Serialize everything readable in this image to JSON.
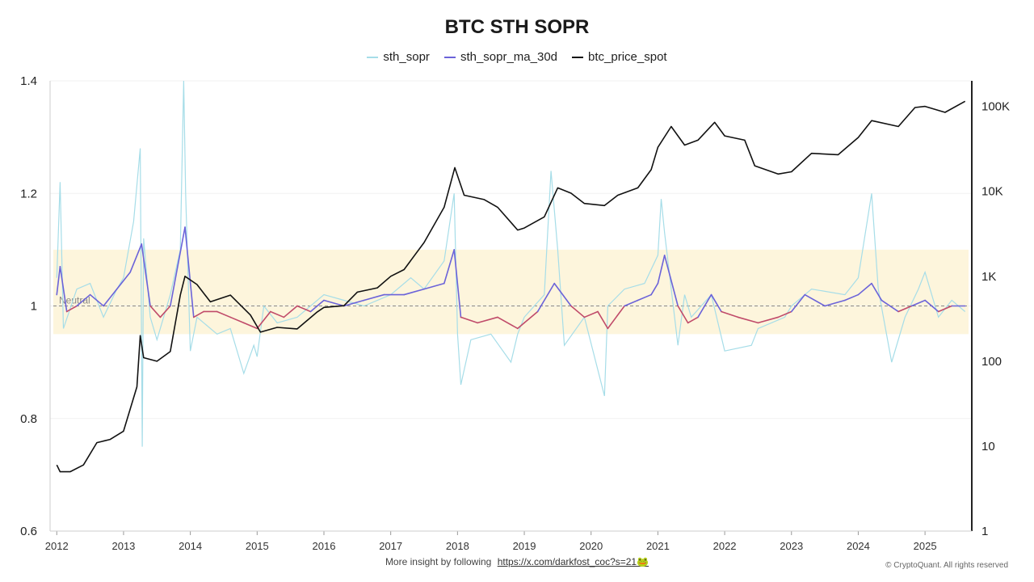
{
  "chart_data": {
    "type": "line",
    "title": "BTC STH SOPR",
    "left_axis": {
      "ylim": [
        0.6,
        1.4
      ],
      "ticks": [
        "0.6",
        "0.8",
        "1",
        "1.2",
        "1.4"
      ]
    },
    "right_axis": {
      "scale": "log",
      "ylim": [
        1,
        200000
      ],
      "ticks": [
        "1",
        "10",
        "100",
        "1K",
        "10K",
        "100K"
      ]
    },
    "x_ticks": [
      "2012",
      "2013",
      "2014",
      "2015",
      "2016",
      "2017",
      "2018",
      "2019",
      "2020",
      "2021",
      "2022",
      "2023",
      "2024",
      "2025"
    ],
    "xlim": [
      2011.9,
      2025.7
    ],
    "neutral": {
      "label": "Neutral",
      "value": 1.0
    },
    "band": [
      0.95,
      1.1
    ],
    "band_color": "#fdf5dc",
    "legend_position": "top-center",
    "series": [
      {
        "name": "sth_sopr",
        "axis": "left",
        "color": "#a6dde8",
        "x": [
          2012.0,
          2012.05,
          2012.1,
          2012.3,
          2012.5,
          2012.7,
          2012.9,
          2013.0,
          2013.15,
          2013.25,
          2013.28,
          2013.3,
          2013.4,
          2013.5,
          2013.7,
          2013.85,
          2013.9,
          2013.93,
          2014.0,
          2014.1,
          2014.2,
          2014.4,
          2014.6,
          2014.8,
          2014.95,
          2015.0,
          2015.1,
          2015.3,
          2015.6,
          2016.0,
          2016.3,
          2016.6,
          2017.0,
          2017.3,
          2017.5,
          2017.8,
          2017.95,
          2018.0,
          2018.05,
          2018.2,
          2018.5,
          2018.8,
          2018.9,
          2019.0,
          2019.3,
          2019.4,
          2019.5,
          2019.6,
          2019.9,
          2020.2,
          2020.25,
          2020.5,
          2020.8,
          2021.0,
          2021.05,
          2021.1,
          2021.3,
          2021.4,
          2021.5,
          2021.8,
          2022.0,
          2022.4,
          2022.5,
          2022.9,
          2023.0,
          2023.3,
          2023.8,
          2024.0,
          2024.2,
          2024.3,
          2024.5,
          2024.7,
          2024.9,
          2025.0,
          2025.2,
          2025.4,
          2025.6
        ],
        "values": [
          1.05,
          1.22,
          0.96,
          1.03,
          1.04,
          0.98,
          1.03,
          1.05,
          1.15,
          1.28,
          0.75,
          1.12,
          0.98,
          0.94,
          1.02,
          1.1,
          1.4,
          1.2,
          0.92,
          0.98,
          0.97,
          0.95,
          0.96,
          0.88,
          0.93,
          0.91,
          1.0,
          0.97,
          0.98,
          1.02,
          1.01,
          1.0,
          1.02,
          1.05,
          1.03,
          1.08,
          1.2,
          0.95,
          0.86,
          0.94,
          0.95,
          0.9,
          0.95,
          0.98,
          1.02,
          1.24,
          1.1,
          0.93,
          0.98,
          0.84,
          1.0,
          1.03,
          1.04,
          1.09,
          1.19,
          1.13,
          0.93,
          1.02,
          0.98,
          1.02,
          0.92,
          0.93,
          0.96,
          0.98,
          1.0,
          1.03,
          1.02,
          1.05,
          1.2,
          1.03,
          0.9,
          0.98,
          1.03,
          1.06,
          0.98,
          1.01,
          0.99
        ]
      },
      {
        "name": "sth_sopr_ma_30d",
        "axis": "left",
        "color": "#6b63d9",
        "color_below_neutral": "#c04b6a",
        "x": [
          2012.0,
          2012.05,
          2012.15,
          2012.3,
          2012.5,
          2012.7,
          2012.9,
          2013.1,
          2013.27,
          2013.4,
          2013.55,
          2013.7,
          2013.92,
          2014.05,
          2014.2,
          2014.4,
          2014.6,
          2014.8,
          2015.0,
          2015.2,
          2015.4,
          2015.6,
          2015.8,
          2016.0,
          2016.3,
          2016.6,
          2016.9,
          2017.2,
          2017.5,
          2017.8,
          2017.95,
          2018.05,
          2018.3,
          2018.6,
          2018.9,
          2019.0,
          2019.2,
          2019.45,
          2019.7,
          2019.9,
          2020.1,
          2020.25,
          2020.5,
          2020.7,
          2020.9,
          2021.0,
          2021.1,
          2021.3,
          2021.45,
          2021.6,
          2021.8,
          2021.95,
          2022.2,
          2022.5,
          2022.8,
          2023.0,
          2023.2,
          2023.5,
          2023.8,
          2024.0,
          2024.2,
          2024.35,
          2024.6,
          2024.8,
          2025.0,
          2025.2,
          2025.4,
          2025.6
        ],
        "values": [
          1.02,
          1.07,
          0.99,
          1.0,
          1.02,
          1.0,
          1.03,
          1.06,
          1.11,
          1.0,
          0.98,
          1.0,
          1.14,
          0.98,
          0.99,
          0.99,
          0.98,
          0.97,
          0.96,
          0.99,
          0.98,
          1.0,
          0.99,
          1.01,
          1.0,
          1.01,
          1.02,
          1.02,
          1.03,
          1.04,
          1.1,
          0.98,
          0.97,
          0.98,
          0.96,
          0.97,
          0.99,
          1.04,
          1.0,
          0.98,
          0.99,
          0.96,
          1.0,
          1.01,
          1.02,
          1.04,
          1.09,
          1.0,
          0.97,
          0.98,
          1.02,
          0.99,
          0.98,
          0.97,
          0.98,
          0.99,
          1.02,
          1.0,
          1.01,
          1.02,
          1.04,
          1.01,
          0.99,
          1.0,
          1.01,
          0.99,
          1.0,
          1.0
        ]
      },
      {
        "name": "btc_price_spot",
        "axis": "right",
        "color": "#111111",
        "x": [
          2012.0,
          2012.05,
          2012.2,
          2012.4,
          2012.6,
          2012.8,
          2013.0,
          2013.2,
          2013.25,
          2013.3,
          2013.5,
          2013.7,
          2013.85,
          2013.92,
          2014.1,
          2014.3,
          2014.6,
          2014.9,
          2015.05,
          2015.3,
          2015.6,
          2015.9,
          2016.0,
          2016.3,
          2016.5,
          2016.8,
          2017.0,
          2017.2,
          2017.5,
          2017.8,
          2017.96,
          2018.1,
          2018.4,
          2018.6,
          2018.9,
          2019.0,
          2019.3,
          2019.5,
          2019.7,
          2019.9,
          2020.2,
          2020.4,
          2020.7,
          2020.9,
          2021.0,
          2021.2,
          2021.4,
          2021.6,
          2021.85,
          2022.0,
          2022.3,
          2022.45,
          2022.8,
          2023.0,
          2023.3,
          2023.7,
          2024.0,
          2024.2,
          2024.6,
          2024.85,
          2025.0,
          2025.3,
          2025.6
        ],
        "values": [
          6,
          5,
          5,
          6,
          11,
          12,
          15,
          50,
          200,
          110,
          100,
          130,
          600,
          1000,
          800,
          500,
          600,
          350,
          220,
          250,
          240,
          380,
          430,
          450,
          650,
          730,
          1000,
          1200,
          2500,
          6500,
          19000,
          9000,
          8000,
          6500,
          3500,
          3700,
          5000,
          11000,
          9500,
          7200,
          6800,
          9000,
          11000,
          18000,
          33000,
          58000,
          35000,
          40000,
          65000,
          45000,
          40000,
          20000,
          16000,
          17000,
          28000,
          27000,
          43000,
          68000,
          58000,
          97000,
          100000,
          85000,
          115000
        ]
      }
    ]
  },
  "footer": {
    "note": "More insight by following",
    "link": "https://x.com/darkfost_coc?s=21🐸",
    "copyright": "© CryptoQuant. All rights reserved"
  }
}
